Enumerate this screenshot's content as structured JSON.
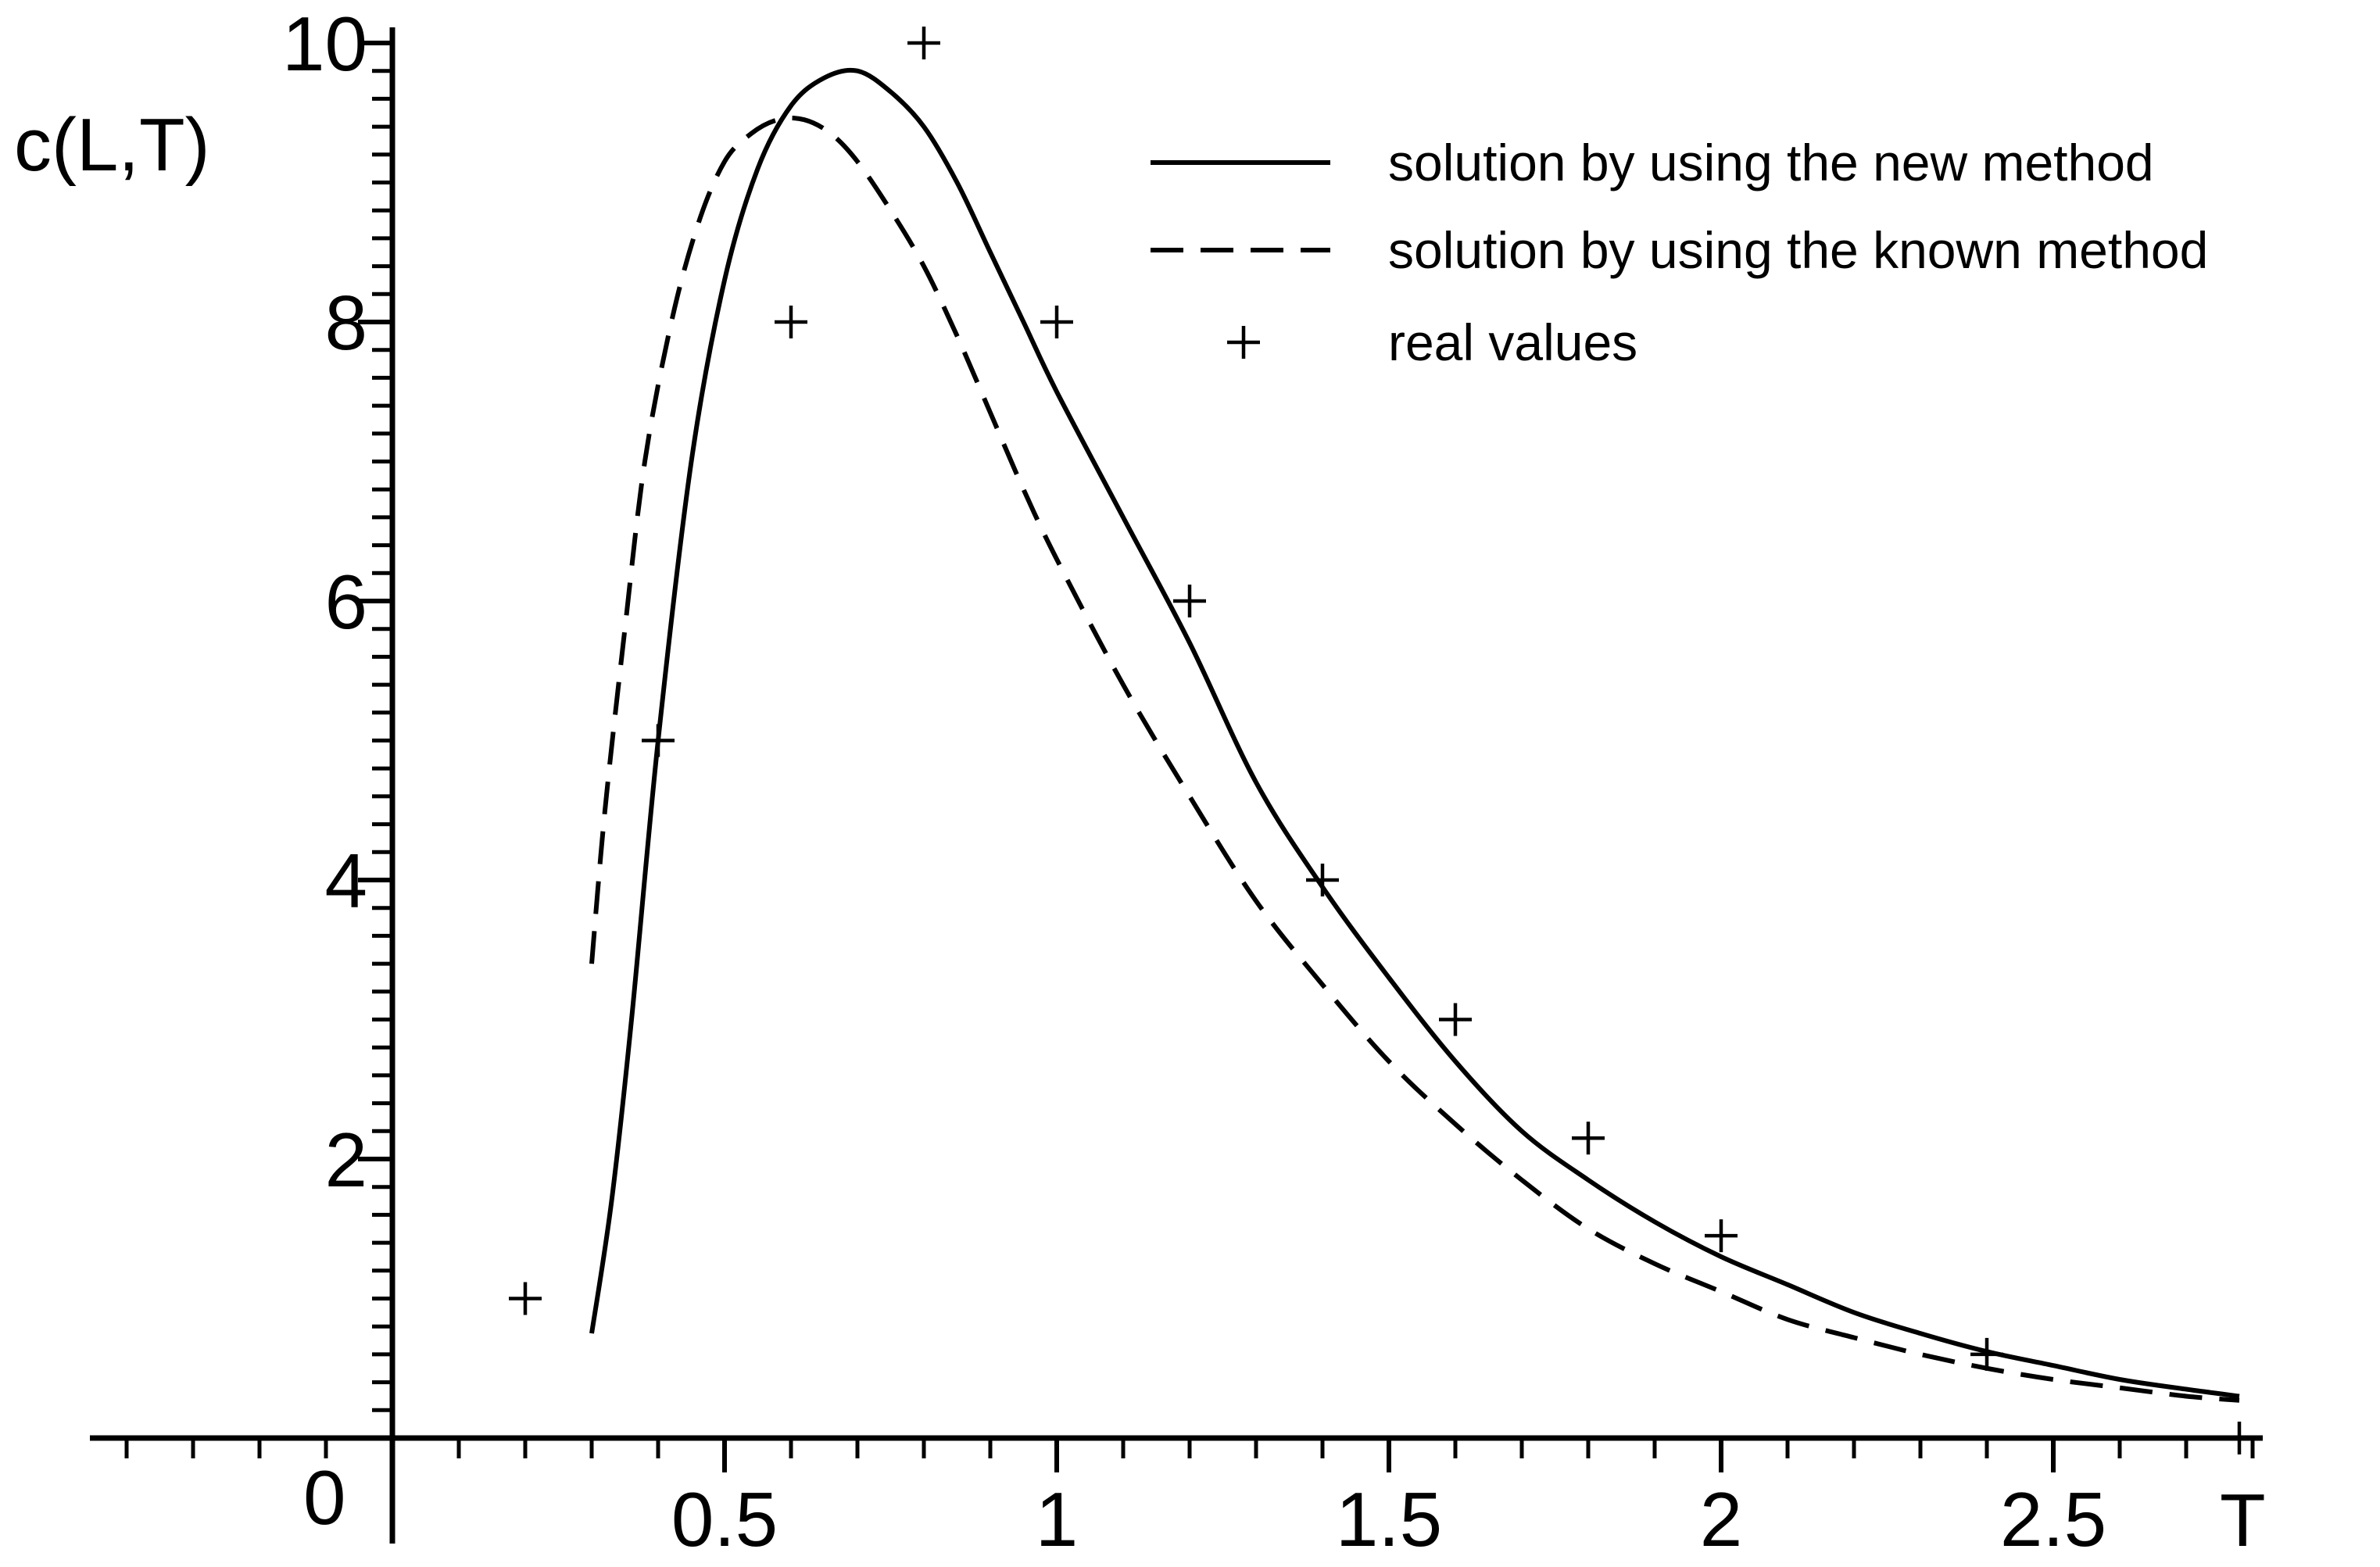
{
  "chart_data": {
    "type": "line",
    "title": "",
    "xlabel": "T",
    "ylabel": "c(L,T)",
    "xlim": [
      -0.45,
      2.82
    ],
    "ylim": [
      0,
      10.2
    ],
    "x_ticks": [
      0.5,
      1,
      1.5,
      2,
      2.5
    ],
    "x_tick_labels": [
      "0.5",
      "1",
      "1.5",
      "2",
      "2.5"
    ],
    "y_ticks": [
      2,
      4,
      6,
      8,
      10
    ],
    "y_tick_labels": [
      "2",
      "4",
      "6",
      "8",
      "10"
    ],
    "origin_label": "0",
    "grid": false,
    "legend_position": "top-right",
    "series": [
      {
        "name": "solution by using the new method",
        "style": "solid",
        "color": "#000000",
        "x": [
          0.3,
          0.33,
          0.36,
          0.4,
          0.45,
          0.5,
          0.55,
          0.6,
          0.65,
          0.7,
          0.75,
          0.8,
          0.85,
          0.9,
          0.95,
          1.0,
          1.1,
          1.2,
          1.3,
          1.4,
          1.5,
          1.6,
          1.7,
          1.8,
          1.9,
          2.0,
          2.1,
          2.2,
          2.3,
          2.4,
          2.5,
          2.6,
          2.7,
          2.78
        ],
        "y": [
          0.75,
          1.7,
          3.0,
          5.0,
          7.0,
          8.3,
          9.1,
          9.55,
          9.75,
          9.8,
          9.65,
          9.4,
          9.0,
          8.5,
          8.0,
          7.5,
          6.6,
          5.7,
          4.7,
          3.95,
          3.3,
          2.7,
          2.2,
          1.85,
          1.55,
          1.3,
          1.1,
          0.9,
          0.75,
          0.62,
          0.52,
          0.42,
          0.35,
          0.3
        ]
      },
      {
        "name": "solution by using the known method",
        "style": "dashed",
        "color": "#000000",
        "x": [
          0.3,
          0.32,
          0.35,
          0.38,
          0.42,
          0.46,
          0.5,
          0.54,
          0.58,
          0.62,
          0.66,
          0.7,
          0.75,
          0.8,
          0.85,
          0.9,
          0.95,
          1.0,
          1.1,
          1.2,
          1.3,
          1.4,
          1.5,
          1.6,
          1.7,
          1.8,
          1.9,
          2.0,
          2.1,
          2.2,
          2.3,
          2.4,
          2.5,
          2.6,
          2.7,
          2.78
        ],
        "y": [
          3.4,
          4.5,
          5.8,
          7.0,
          8.0,
          8.7,
          9.15,
          9.35,
          9.45,
          9.45,
          9.35,
          9.15,
          8.8,
          8.4,
          7.9,
          7.35,
          6.8,
          6.3,
          5.4,
          4.6,
          3.85,
          3.25,
          2.7,
          2.25,
          1.85,
          1.5,
          1.25,
          1.05,
          0.85,
          0.72,
          0.6,
          0.5,
          0.42,
          0.36,
          0.3,
          0.27
        ]
      },
      {
        "name": "real values",
        "style": "marker-plus",
        "color": "#000000",
        "x": [
          0.2,
          0.4,
          0.6,
          0.8,
          1.0,
          1.2,
          1.4,
          1.6,
          1.8,
          2.0,
          2.4,
          2.78
        ],
        "y": [
          1.0,
          5.0,
          8.0,
          10.0,
          8.0,
          6.0,
          4.0,
          3.0,
          2.15,
          1.45,
          0.6,
          0.0
        ]
      }
    ]
  }
}
